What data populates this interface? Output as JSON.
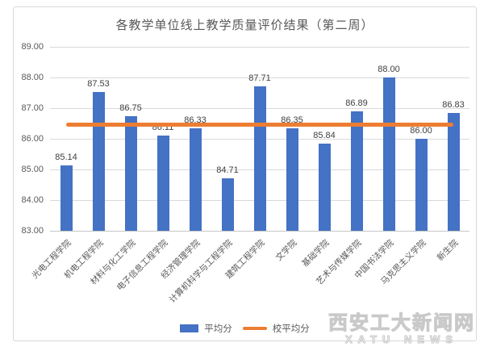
{
  "chart_data": {
    "type": "bar",
    "title": "各教学单位线上教学质量评价结果（第二周）",
    "categories": [
      "光电工程学院",
      "机电工程学院",
      "材料与化工学院",
      "电子信息工程学院",
      "经济管理学院",
      "计算机科学与工程学院",
      "建筑工程学院",
      "文学院",
      "基础学院",
      "艺术与传媒学院",
      "中国书法学院",
      "马克思主义学院",
      "新生院"
    ],
    "series": [
      {
        "name": "平均分",
        "type": "bar",
        "color": "#4472C4",
        "values": [
          85.14,
          87.53,
          86.75,
          86.11,
          86.33,
          84.71,
          87.71,
          86.35,
          85.84,
          86.89,
          88.0,
          86.0,
          86.83
        ],
        "labels": [
          "85.14",
          "87.53",
          "86.75",
          "86.11",
          "86.33",
          "84.71",
          "87.71",
          "86.35",
          "85.84",
          "86.89",
          "88.00",
          "86.00",
          "86.83"
        ]
      },
      {
        "name": "校平均分",
        "type": "line",
        "color": "#ED7D31",
        "value": 86.45
      }
    ],
    "ylim": [
      83,
      89
    ],
    "yticks": [
      "89.00",
      "88.00",
      "87.00",
      "86.00",
      "85.00",
      "84.00",
      "83.00"
    ],
    "grid": true,
    "legend_position": "bottom"
  },
  "watermark": {
    "line1": "西安工大新闻网",
    "line2": "XATU NEWS"
  },
  "colors": {
    "bar": "#4472C4",
    "line": "#ED7D31",
    "gridline": "#D9D9D9",
    "axis_text": "#595959",
    "data_label": "#404040"
  }
}
